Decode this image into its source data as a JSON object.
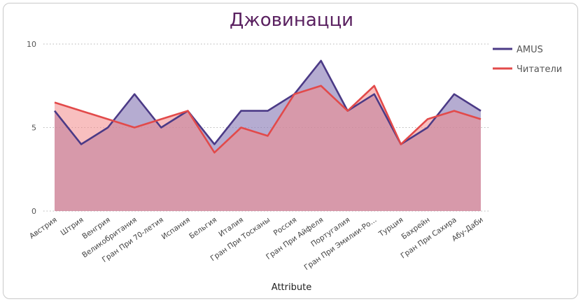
{
  "chart_data": {
    "type": "area",
    "title": "Джовинацци",
    "xlabel": "Attribute",
    "ylabel": "",
    "ylim": [
      0,
      10
    ],
    "yticks": [
      0,
      5,
      10
    ],
    "grid": true,
    "legend_position": "right",
    "categories": [
      "Австрия",
      "Штрия",
      "Венгрия",
      "Великобритания",
      "Гран При 70-летия",
      "Испания",
      "Бельгия",
      "Италия",
      "Гран При Тосканы",
      "Россия",
      "Гран При Айфеля",
      "Португалия",
      "Гран При Эмилии-Ро...",
      "Турция",
      "Бахрейн",
      "Гран При Сахира",
      "Абу-Даби"
    ],
    "series": [
      {
        "name": "AMUS",
        "color": "#4b3a86",
        "fill": "#8e7fb8",
        "values": [
          6,
          4,
          5,
          7,
          5,
          6,
          4,
          6,
          6,
          7,
          9,
          6,
          7,
          4,
          5,
          7,
          6
        ]
      },
      {
        "name": "Читатели",
        "color": "#e24a4a",
        "fill": "#f28b8b",
        "values": [
          6.5,
          6,
          5.5,
          5,
          5.5,
          6,
          3.5,
          5,
          4.5,
          7,
          7.5,
          6,
          7.5,
          4,
          5.5,
          6,
          5.5
        ]
      }
    ]
  }
}
